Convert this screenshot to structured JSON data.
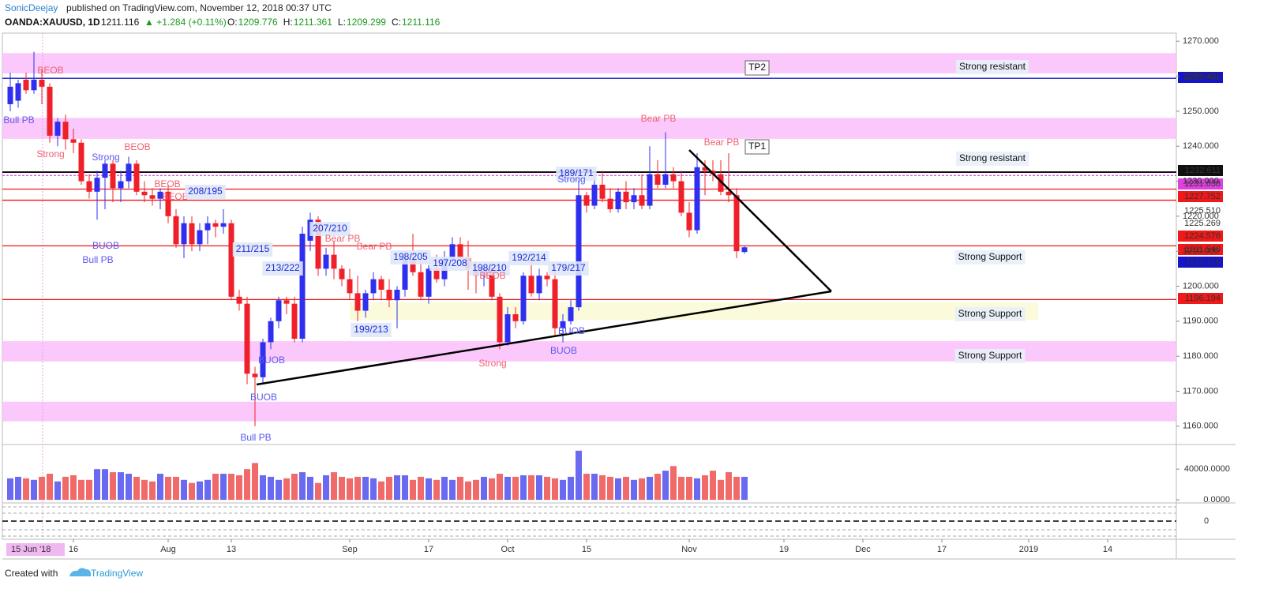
{
  "header": {
    "author": "SonicDeejay",
    "published": "published on TradingView.com, November 12, 2018 00:37 UTC",
    "symbol": "OANDA:XAUUSD, 1D",
    "last": "1211.116",
    "change": "▲ +1.284 (+0.11%)",
    "ohlc": [
      {
        "label": "O:",
        "value": "1209.776"
      },
      {
        "label": "H:",
        "value": "1211.361"
      },
      {
        "label": "L:",
        "value": "1209.299"
      },
      {
        "label": "C:",
        "value": "1211.116"
      }
    ]
  },
  "footer": {
    "text": "Created with",
    "brand": "TradingView"
  },
  "chart_data": {
    "type": "candlestick",
    "up_color": "#2f2ff0",
    "down_color": "#f0202a",
    "volume_up_color": "#6a6af0",
    "volume_down_color": "#f06a6a",
    "crosshair_date": "15 Jun '18",
    "xlim": [
      -1,
      147.7
    ],
    "xticks": [
      {
        "value": 8,
        "label": "16"
      },
      {
        "value": 20,
        "label": "Aug"
      },
      {
        "value": 28,
        "label": "13"
      },
      {
        "value": 43,
        "label": "Sep"
      },
      {
        "value": 53,
        "label": "17"
      },
      {
        "value": 63,
        "label": "Oct"
      },
      {
        "value": 73,
        "label": "15"
      },
      {
        "value": 86,
        "label": "Nov"
      },
      {
        "value": 98,
        "label": "19"
      },
      {
        "value": 108,
        "label": "Dec"
      },
      {
        "value": 118,
        "label": "17"
      },
      {
        "value": 129,
        "label": "2019"
      },
      {
        "value": 139,
        "label": "14"
      }
    ],
    "ylim": [
      1155,
      1272.3
    ],
    "yticks": [
      {
        "value": 1160,
        "label": "1160.000"
      },
      {
        "value": 1170,
        "label": "1170.000"
      },
      {
        "value": 1180,
        "label": "1180.000"
      },
      {
        "value": 1190,
        "label": "1190.000"
      },
      {
        "value": 1200,
        "label": "1200.000"
      },
      {
        "value": 1210,
        "label": "1210.000"
      },
      {
        "value": 1220,
        "label": "1220.000"
      },
      {
        "value": 1230,
        "label": "1230.000"
      },
      {
        "value": 1240,
        "label": "1240.000"
      },
      {
        "value": 1250,
        "label": "1250.000"
      },
      {
        "value": 1260,
        "label": "1260.000"
      },
      {
        "value": 1270,
        "label": "1270.000"
      }
    ],
    "volume_ylim": [
      -3000,
      70000
    ],
    "volume_yticks": [
      {
        "value": 0,
        "label": "0.0000"
      },
      {
        "value": 40000,
        "label": "40000.0000"
      }
    ],
    "oscillator_ylim": [
      -1,
      1
    ],
    "oscillator_yticks": [
      0
    ],
    "x": [
      0,
      1,
      2,
      3,
      4,
      5,
      6,
      7,
      8,
      9,
      10,
      11,
      12,
      13,
      14,
      15,
      16,
      17,
      18,
      19,
      20,
      21,
      22,
      23,
      24,
      25,
      26,
      27,
      28,
      29,
      30,
      31,
      32,
      33,
      34,
      35,
      36,
      37,
      38,
      39,
      40,
      41,
      42,
      43,
      44,
      45,
      46,
      47,
      48,
      49,
      50,
      51,
      52,
      53,
      54,
      55,
      56,
      57,
      58,
      59,
      60,
      61,
      62,
      63,
      64,
      65,
      66,
      67,
      68,
      69,
      70,
      71,
      72,
      73,
      74,
      75,
      76,
      77,
      78,
      79,
      80,
      81,
      82,
      83,
      84,
      85,
      86,
      87,
      88,
      89,
      90,
      91,
      92,
      93
    ],
    "candles": [
      {
        "open": 1252,
        "high": 1261,
        "low": 1250,
        "close": 1257
      },
      {
        "open": 1253,
        "high": 1259,
        "low": 1251,
        "close": 1258
      },
      {
        "open": 1259,
        "high": 1261,
        "low": 1255,
        "close": 1256
      },
      {
        "open": 1256,
        "high": 1267,
        "low": 1255,
        "close": 1259
      },
      {
        "open": 1259,
        "high": 1262,
        "low": 1252,
        "close": 1257
      },
      {
        "open": 1257,
        "high": 1258,
        "low": 1241,
        "close": 1243
      },
      {
        "open": 1243,
        "high": 1248,
        "low": 1240,
        "close": 1247
      },
      {
        "open": 1247,
        "high": 1249,
        "low": 1239,
        "close": 1242
      },
      {
        "open": 1242,
        "high": 1245,
        "low": 1238,
        "close": 1241
      },
      {
        "open": 1241,
        "high": 1242,
        "low": 1229,
        "close": 1230
      },
      {
        "open": 1230,
        "high": 1232,
        "low": 1225,
        "close": 1227
      },
      {
        "open": 1227,
        "high": 1233,
        "low": 1219,
        "close": 1231
      },
      {
        "open": 1231,
        "high": 1236,
        "low": 1222,
        "close": 1235
      },
      {
        "open": 1235,
        "high": 1236,
        "low": 1224,
        "close": 1228
      },
      {
        "open": 1228,
        "high": 1233,
        "low": 1224,
        "close": 1230
      },
      {
        "open": 1230,
        "high": 1237,
        "low": 1228,
        "close": 1235
      },
      {
        "open": 1235,
        "high": 1236,
        "low": 1226,
        "close": 1227
      },
      {
        "open": 1227,
        "high": 1230,
        "low": 1224,
        "close": 1226
      },
      {
        "open": 1226,
        "high": 1228,
        "low": 1223,
        "close": 1225
      },
      {
        "open": 1225,
        "high": 1228,
        "low": 1222,
        "close": 1227
      },
      {
        "open": 1227,
        "high": 1229,
        "low": 1218,
        "close": 1220
      },
      {
        "open": 1220,
        "high": 1222,
        "low": 1211,
        "close": 1212
      },
      {
        "open": 1212,
        "high": 1220,
        "low": 1208,
        "close": 1218
      },
      {
        "open": 1218,
        "high": 1220,
        "low": 1210,
        "close": 1212
      },
      {
        "open": 1212,
        "high": 1218,
        "low": 1210,
        "close": 1216
      },
      {
        "open": 1216,
        "high": 1220,
        "low": 1212,
        "close": 1218
      },
      {
        "open": 1218,
        "high": 1219,
        "low": 1214,
        "close": 1217
      },
      {
        "open": 1217,
        "high": 1222,
        "low": 1215,
        "close": 1218
      },
      {
        "open": 1218,
        "high": 1219,
        "low": 1196,
        "close": 1197
      },
      {
        "open": 1197,
        "high": 1199,
        "low": 1193,
        "close": 1195
      },
      {
        "open": 1195,
        "high": 1197,
        "low": 1172,
        "close": 1175
      },
      {
        "open": 1175,
        "high": 1177,
        "low": 1160,
        "close": 1174
      },
      {
        "open": 1174,
        "high": 1185,
        "low": 1172,
        "close": 1184
      },
      {
        "open": 1184,
        "high": 1191,
        "low": 1182,
        "close": 1190
      },
      {
        "open": 1190,
        "high": 1197,
        "low": 1188,
        "close": 1196
      },
      {
        "open": 1196,
        "high": 1197,
        "low": 1192,
        "close": 1195
      },
      {
        "open": 1195,
        "high": 1197,
        "low": 1184,
        "close": 1185
      },
      {
        "open": 1185,
        "high": 1217,
        "low": 1184,
        "close": 1215
      },
      {
        "open": 1213,
        "high": 1221,
        "low": 1210,
        "close": 1219
      },
      {
        "open": 1219,
        "high": 1220,
        "low": 1203,
        "close": 1205
      },
      {
        "open": 1205,
        "high": 1211,
        "low": 1203,
        "close": 1209
      },
      {
        "open": 1209,
        "high": 1213,
        "low": 1202,
        "close": 1205
      },
      {
        "open": 1205,
        "high": 1206,
        "low": 1200,
        "close": 1202
      },
      {
        "open": 1202,
        "high": 1205,
        "low": 1196,
        "close": 1198
      },
      {
        "open": 1198,
        "high": 1203,
        "low": 1190,
        "close": 1193
      },
      {
        "open": 1193,
        "high": 1199,
        "low": 1191,
        "close": 1198
      },
      {
        "open": 1198,
        "high": 1204,
        "low": 1196,
        "close": 1202
      },
      {
        "open": 1202,
        "high": 1203,
        "low": 1196,
        "close": 1199
      },
      {
        "open": 1199,
        "high": 1202,
        "low": 1194,
        "close": 1196
      },
      {
        "open": 1196,
        "high": 1200,
        "low": 1188,
        "close": 1199
      },
      {
        "open": 1199,
        "high": 1210,
        "low": 1197,
        "close": 1208
      },
      {
        "open": 1208,
        "high": 1215,
        "low": 1203,
        "close": 1204
      },
      {
        "open": 1204,
        "high": 1207,
        "low": 1196,
        "close": 1197
      },
      {
        "open": 1197,
        "high": 1206,
        "low": 1195,
        "close": 1205
      },
      {
        "open": 1205,
        "high": 1209,
        "low": 1201,
        "close": 1202
      },
      {
        "open": 1202,
        "high": 1210,
        "low": 1200,
        "close": 1208
      },
      {
        "open": 1208,
        "high": 1214,
        "low": 1206,
        "close": 1212
      },
      {
        "open": 1212,
        "high": 1214,
        "low": 1207,
        "close": 1208
      },
      {
        "open": 1208,
        "high": 1213,
        "low": 1199,
        "close": 1205
      },
      {
        "open": 1205,
        "high": 1207,
        "low": 1198,
        "close": 1203
      },
      {
        "open": 1203,
        "high": 1206,
        "low": 1200,
        "close": 1205
      },
      {
        "open": 1205,
        "high": 1206,
        "low": 1196,
        "close": 1197
      },
      {
        "open": 1197,
        "high": 1198,
        "low": 1182,
        "close": 1184
      },
      {
        "open": 1184,
        "high": 1194,
        "low": 1183,
        "close": 1192
      },
      {
        "open": 1192,
        "high": 1194,
        "low": 1188,
        "close": 1190
      },
      {
        "open": 1190,
        "high": 1204,
        "low": 1189,
        "close": 1203
      },
      {
        "open": 1203,
        "high": 1207,
        "low": 1197,
        "close": 1198
      },
      {
        "open": 1198,
        "high": 1205,
        "low": 1196,
        "close": 1203
      },
      {
        "open": 1203,
        "high": 1204,
        "low": 1200,
        "close": 1202
      },
      {
        "open": 1202,
        "high": 1206,
        "low": 1186,
        "close": 1188
      },
      {
        "open": 1188,
        "high": 1192,
        "low": 1184,
        "close": 1190
      },
      {
        "open": 1190,
        "high": 1196,
        "low": 1189,
        "close": 1194
      },
      {
        "open": 1194,
        "high": 1233,
        "low": 1193,
        "close": 1226
      },
      {
        "open": 1226,
        "high": 1227,
        "low": 1221,
        "close": 1223
      },
      {
        "open": 1223,
        "high": 1232,
        "low": 1222,
        "close": 1229
      },
      {
        "open": 1229,
        "high": 1233,
        "low": 1224,
        "close": 1225
      },
      {
        "open": 1225,
        "high": 1228,
        "low": 1221,
        "close": 1222
      },
      {
        "open": 1222,
        "high": 1228,
        "low": 1221,
        "close": 1227
      },
      {
        "open": 1227,
        "high": 1230,
        "low": 1222,
        "close": 1224
      },
      {
        "open": 1224,
        "high": 1228,
        "low": 1222,
        "close": 1226
      },
      {
        "open": 1226,
        "high": 1232,
        "low": 1222,
        "close": 1223
      },
      {
        "open": 1223,
        "high": 1240,
        "low": 1222,
        "close": 1232
      },
      {
        "open": 1232,
        "high": 1236,
        "low": 1228,
        "close": 1229
      },
      {
        "open": 1229,
        "high": 1244,
        "low": 1228,
        "close": 1232
      },
      {
        "open": 1232,
        "high": 1234,
        "low": 1228,
        "close": 1230
      },
      {
        "open": 1230,
        "high": 1233,
        "low": 1220,
        "close": 1221
      },
      {
        "open": 1221,
        "high": 1224,
        "low": 1214,
        "close": 1216
      },
      {
        "open": 1216,
        "high": 1238,
        "low": 1215,
        "close": 1234
      },
      {
        "open": 1234,
        "high": 1236,
        "low": 1226,
        "close": 1233
      },
      {
        "open": 1233,
        "high": 1236,
        "low": 1230,
        "close": 1232
      },
      {
        "open": 1232,
        "high": 1236,
        "low": 1226,
        "close": 1227
      },
      {
        "open": 1227,
        "high": 1238,
        "low": 1224,
        "close": 1226
      },
      {
        "open": 1226,
        "high": 1228,
        "low": 1208,
        "close": 1210
      },
      {
        "open": 1209.776,
        "high": 1211.361,
        "low": 1209.299,
        "close": 1211.116
      }
    ],
    "volume": [
      28000,
      30000,
      28000,
      26000,
      30000,
      34000,
      24000,
      30000,
      32000,
      26000,
      26000,
      40000,
      40000,
      36000,
      36000,
      34000,
      30000,
      26000,
      24000,
      34000,
      30000,
      30000,
      26000,
      22000,
      24000,
      26000,
      34000,
      34000,
      34000,
      32000,
      40000,
      48000,
      32000,
      30000,
      26000,
      28000,
      34000,
      36000,
      30000,
      22000,
      32000,
      36000,
      30000,
      28000,
      30000,
      30000,
      28000,
      24000,
      30000,
      32000,
      32000,
      26000,
      30000,
      28000,
      26000,
      30000,
      26000,
      30000,
      24000,
      26000,
      30000,
      28000,
      34000,
      30000,
      30000,
      32000,
      32000,
      32000,
      30000,
      28000,
      26000,
      30000,
      64000,
      34000,
      34000,
      32000,
      30000,
      28000,
      30000,
      26000,
      28000,
      30000,
      34000,
      38000,
      44000,
      30000,
      30000,
      28000,
      32000,
      38000,
      26000,
      36000,
      30000,
      30000
    ],
    "zones": [
      {
        "low": 1260.8,
        "high": 1266.6
      },
      {
        "low": 1242.1,
        "high": 1248.1
      },
      {
        "low": 1178.5,
        "high": 1184.3
      },
      {
        "low": 1161.4,
        "high": 1167.0
      },
      {
        "low": 1190.4,
        "high": 1195.4
      }
    ],
    "price_markers": [
      {
        "value": 1259.401,
        "label": "1259.401",
        "color": "#1414c8",
        "line": true
      },
      {
        "value": 1232.611,
        "label": "1232.611",
        "color": "#111111",
        "line": true
      },
      {
        "value": 1231.638,
        "label": "1231.638",
        "color": "#e040e0",
        "line": true
      },
      {
        "value": 1227.752,
        "label": "1227.752",
        "color": "#f01818",
        "line": true
      },
      {
        "value": 1225.51,
        "label": "1225.510"
      },
      {
        "value": 1225.269,
        "label": "1225.269"
      },
      {
        "value": 1224.576,
        "label": "1224.576",
        "color": "#f01818",
        "line": true
      },
      {
        "value": 1211.54,
        "label": "1211.540",
        "color": "#f01818",
        "line": true
      },
      {
        "value": 1211.116,
        "label": "1211.116",
        "color": "#1414c8"
      },
      {
        "value": 1196.194,
        "label": "1196.194",
        "color": "#f01818",
        "line": true
      }
    ],
    "annotations": [
      "BEOB",
      "Bull PB",
      "Strong",
      "Strong",
      "BEOB",
      "BUOB",
      "Bull PB",
      "BEOB",
      "BEOB",
      "208/195",
      "211/215",
      "213/222",
      "207/210",
      "Bear PB",
      "Bear PB",
      "198/205",
      "197/208",
      "198/210",
      "192/214",
      "179/217",
      "199/213",
      "BEOB",
      "BUOB",
      "BUOB",
      "Bull PB",
      "Strong",
      "BUOB",
      "BUOB",
      "189/171",
      "Strong",
      "Bear PB",
      "Bear PB",
      "TP1",
      "TP2",
      "Strong resistant",
      "Strong resistant",
      "Strong Support",
      "Strong Support",
      "Strong Support"
    ]
  }
}
